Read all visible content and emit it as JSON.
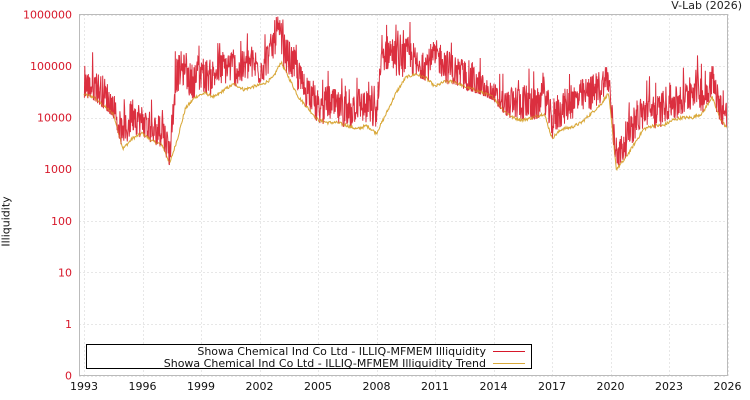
{
  "credit": "V-Lab (2026)",
  "chart_data": {
    "type": "line",
    "title": "",
    "xlabel": "",
    "ylabel": "Illiquidity",
    "yscale": "log",
    "ylim": [
      0,
      1000000
    ],
    "xlim": [
      1993,
      2026
    ],
    "y_ticks": [
      "0",
      "1",
      "10",
      "100",
      "1000",
      "10000",
      "100000",
      "1000000"
    ],
    "x_ticks": [
      "1993",
      "1996",
      "1999",
      "2002",
      "2005",
      "2008",
      "2011",
      "2014",
      "2017",
      "2020",
      "2023",
      "2026"
    ],
    "grid": true,
    "legend_position": "lower-left inside",
    "series": [
      {
        "name": "Showa Chemical Ind Co Ltd - ILLIQ-MFMEM Illiquidity",
        "color": "#d7182a",
        "x": [
          1993.0,
          1993.5,
          1994.0,
          1994.5,
          1995.0,
          1995.5,
          1996.0,
          1996.5,
          1997.0,
          1997.4,
          1997.7,
          1998.0,
          1998.5,
          1999.0,
          1999.5,
          2000.0,
          2000.5,
          2001.0,
          2001.5,
          2002.0,
          2002.5,
          2002.9,
          2003.3,
          2003.8,
          2004.2,
          2004.7,
          2005.0,
          2005.5,
          2006.0,
          2006.5,
          2007.0,
          2007.5,
          2008.0,
          2008.3,
          2008.7,
          2009.2,
          2009.7,
          2010.2,
          2010.7,
          2011.2,
          2011.7,
          2012.2,
          2012.7,
          2013.2,
          2013.7,
          2014.2,
          2014.7,
          2015.2,
          2015.7,
          2016.2,
          2016.6,
          2017.0,
          2017.5,
          2018.0,
          2018.5,
          2019.0,
          2019.5,
          2019.9,
          2020.2,
          2020.5,
          2020.9,
          2021.4,
          2021.9,
          2022.4,
          2022.9,
          2023.4,
          2023.9,
          2024.4,
          2024.8,
          2025.2,
          2025.6,
          2026.0
        ],
        "values": [
          35000,
          40000,
          30000,
          15000,
          4000,
          12000,
          8000,
          5000,
          6000,
          2000,
          60000,
          90000,
          50000,
          70000,
          60000,
          90000,
          100000,
          80000,
          120000,
          90000,
          150000,
          500000,
          180000,
          100000,
          40000,
          30000,
          12000,
          20000,
          15000,
          10000,
          20000,
          15000,
          12000,
          150000,
          200000,
          120000,
          180000,
          80000,
          120000,
          150000,
          90000,
          70000,
          60000,
          40000,
          25000,
          20000,
          15000,
          20000,
          20000,
          15000,
          30000,
          8000,
          15000,
          20000,
          25000,
          30000,
          40000,
          60000,
          3000,
          2000,
          5000,
          10000,
          15000,
          12000,
          20000,
          18000,
          25000,
          40000,
          25000,
          60000,
          15000,
          10000
        ]
      },
      {
        "name": "Showa Chemical Ind Co Ltd - ILLIQ-MFMEM Illiquidity Trend",
        "color": "#d9a93a",
        "x": [
          1993.0,
          1993.5,
          1994.0,
          1994.5,
          1995.0,
          1995.5,
          1996.0,
          1996.5,
          1997.0,
          1997.4,
          1997.8,
          1998.2,
          1998.7,
          1999.2,
          1999.7,
          2000.2,
          2000.7,
          2001.2,
          2001.7,
          2002.2,
          2002.7,
          2003.1,
          2003.5,
          2004.0,
          2004.5,
          2005.0,
          2005.5,
          2006.0,
          2006.5,
          2007.0,
          2007.5,
          2008.0,
          2008.5,
          2009.0,
          2009.5,
          2010.0,
          2010.5,
          2011.0,
          2011.5,
          2012.0,
          2012.5,
          2013.0,
          2013.5,
          2014.0,
          2014.5,
          2015.0,
          2015.5,
          2016.0,
          2016.6,
          2017.0,
          2017.5,
          2018.0,
          2018.5,
          2019.0,
          2019.5,
          2019.9,
          2020.3,
          2020.7,
          2021.2,
          2021.7,
          2022.2,
          2022.7,
          2023.2,
          2023.7,
          2024.2,
          2024.7,
          2025.2,
          2025.6,
          2026.0
        ],
        "values": [
          28000,
          25000,
          17000,
          12000,
          2500,
          4000,
          5000,
          3500,
          3000,
          1300,
          4000,
          15000,
          25000,
          30000,
          25000,
          35000,
          45000,
          35000,
          40000,
          45000,
          60000,
          120000,
          60000,
          25000,
          15000,
          9000,
          8000,
          8000,
          7000,
          6000,
          7000,
          5000,
          12000,
          30000,
          60000,
          70000,
          60000,
          40000,
          50000,
          50000,
          40000,
          35000,
          30000,
          25000,
          14000,
          10000,
          9000,
          10000,
          12000,
          4000,
          6000,
          6500,
          8000,
          12000,
          18000,
          30000,
          1000,
          1500,
          3000,
          6000,
          7000,
          7000,
          9000,
          10000,
          10000,
          12000,
          25000,
          10000,
          6000
        ]
      }
    ]
  },
  "legend": {
    "items": [
      {
        "label": "Showa Chemical Ind Co Ltd - ILLIQ-MFMEM Illiquidity",
        "color": "#d7182a"
      },
      {
        "label": "Showa Chemical Ind Co Ltd - ILLIQ-MFMEM Illiquidity Trend",
        "color": "#d9a93a"
      }
    ]
  }
}
